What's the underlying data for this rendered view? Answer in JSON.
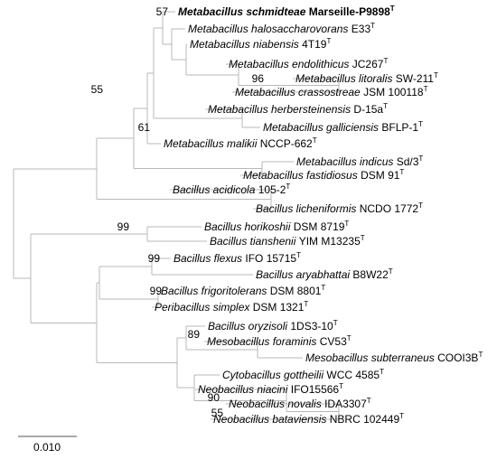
{
  "taxa": [
    {
      "species": "Metabacillus schmidteae",
      "strain": "Marseille-P9898",
      "type_strain_mark": "T",
      "highlight": true
    },
    {
      "species": "Metabacillus halosaccharovorans",
      "strain": "E33",
      "type_strain_mark": "T"
    },
    {
      "species": "Metabacillus niabensis",
      "strain": "4T19",
      "type_strain_mark": "T"
    },
    {
      "species": "Metabacillus endolithicus",
      "strain": "JC267",
      "type_strain_mark": "T"
    },
    {
      "species": "Metabacillus litoralis",
      "strain": "SW-211",
      "type_strain_mark": "T"
    },
    {
      "species": "Metabacillus crassostreae",
      "strain": "JSM 100118",
      "type_strain_mark": "T"
    },
    {
      "species": "Metabacillus herbersteinensis",
      "strain": "D-15a",
      "type_strain_mark": "T"
    },
    {
      "species": "Metabacillus galliciensis",
      "strain": "BFLP-1",
      "type_strain_mark": "T"
    },
    {
      "species": "Metabacillus malikii",
      "strain": "NCCP-662",
      "type_strain_mark": "T"
    },
    {
      "species": "Metabacillus indicus",
      "strain": "Sd/3",
      "type_strain_mark": "T"
    },
    {
      "species": "Metabacillus fastidiosus",
      "strain": "DSM 91",
      "type_strain_mark": "T"
    },
    {
      "species": "Bacillus acidicola",
      "strain": "105-2",
      "type_strain_mark": "T"
    },
    {
      "species": "Bacillus licheniformis",
      "strain": "NCDO 1772",
      "type_strain_mark": "T"
    },
    {
      "species": "Bacillus horikoshii",
      "strain": "DSM 8719",
      "type_strain_mark": "T"
    },
    {
      "species": "Bacillus tianshenii",
      "strain": "YIM M13235",
      "type_strain_mark": "T"
    },
    {
      "species": "Bacillus flexus",
      "strain": "IFO 15715",
      "type_strain_mark": "T"
    },
    {
      "species": "Bacillus aryabhattai",
      "strain": "B8W22",
      "type_strain_mark": "T"
    },
    {
      "species": "Bacillus frigoritolerans",
      "strain": "DSM 8801",
      "type_strain_mark": "T"
    },
    {
      "species": "Peribacillus simplex",
      "strain": "DSM 1321",
      "type_strain_mark": "T"
    },
    {
      "species": "Bacillus oryzisoli",
      "strain": "1DS3-10",
      "type_strain_mark": "T"
    },
    {
      "species": "Mesobacillus foraminis",
      "strain": "CV53",
      "type_strain_mark": "T"
    },
    {
      "species": "Mesobacillus subterraneus",
      "strain": "COOI3B",
      "type_strain_mark": "T"
    },
    {
      "species": "Cytobacillus gottheilii",
      "strain": "WCC 4585",
      "type_strain_mark": "T"
    },
    {
      "species": "Neobacillus niacini",
      "strain": "IFO15566",
      "type_strain_mark": "T"
    },
    {
      "species": "Neobacillus novalis",
      "strain": "IDA3307",
      "type_strain_mark": "T"
    },
    {
      "species": "Neobacillus bataviensis",
      "strain": "NBRC 102449",
      "type_strain_mark": "T"
    }
  ],
  "bootstrap_values": [
    "57",
    "96",
    "55",
    "61",
    "99",
    "99",
    "99",
    "89",
    "90",
    "55"
  ],
  "scale_bar": {
    "label": "0.010"
  }
}
